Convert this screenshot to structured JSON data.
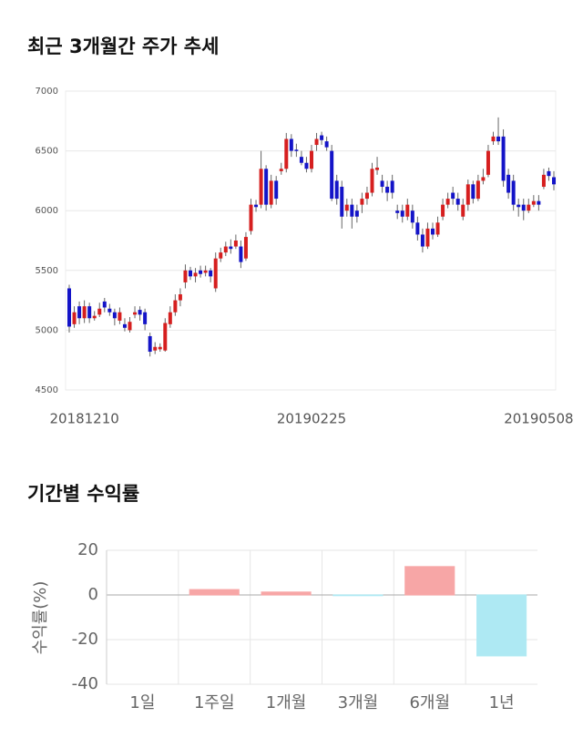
{
  "chart_data": [
    {
      "type": "candlestick",
      "title": "최근 3개월간 주가 추세",
      "categories": [
        null,
        null,
        null,
        "20181210",
        null,
        null,
        null,
        null,
        null,
        null,
        null,
        null,
        null,
        null,
        null,
        null,
        null,
        null,
        null,
        null,
        null,
        null,
        null,
        null,
        null,
        null,
        null,
        null,
        null,
        null,
        null,
        null,
        null,
        null,
        null,
        null,
        null,
        null,
        null,
        null,
        null,
        null,
        null,
        null,
        null,
        null,
        null,
        null,
        "20190225",
        null,
        null,
        null,
        null,
        null,
        null,
        null,
        null,
        null,
        null,
        null,
        null,
        null,
        null,
        null,
        null,
        null,
        null,
        null,
        null,
        null,
        null,
        null,
        null,
        null,
        null,
        null,
        null,
        null,
        null,
        null,
        null,
        null,
        null,
        null,
        null,
        null,
        null,
        null,
        null,
        null,
        null,
        null,
        null,
        "20190508",
        null,
        null,
        null
      ],
      "open": [
        5350,
        5050,
        5200,
        5100,
        5200,
        5100,
        5130,
        5240,
        5180,
        5150,
        5080,
        5050,
        5000,
        5130,
        5170,
        5150,
        4950,
        4830,
        4840,
        4830,
        5050,
        5150,
        5250,
        5400,
        5500,
        5450,
        5500,
        5480,
        5500,
        5350,
        5600,
        5650,
        5700,
        5700,
        5700,
        5600,
        5830,
        6050,
        6050,
        6350,
        6050,
        6250,
        6330,
        6350,
        6600,
        6510,
        6450,
        6400,
        6350,
        6550,
        6630,
        6580,
        6500,
        6250,
        6200,
        6000,
        6050,
        6000,
        6050,
        6100,
        6150,
        6340,
        6250,
        6200,
        6250,
        6000,
        6000,
        5950,
        6000,
        5900,
        5800,
        5700,
        5850,
        5800,
        5950,
        6050,
        6150,
        6100,
        5950,
        6050,
        6220,
        6100,
        6250,
        6300,
        6580,
        6620,
        6620,
        6300,
        6250,
        6050,
        6050,
        6000,
        6050,
        6080,
        6200,
        6330,
        6280
      ],
      "high": [
        5380,
        5200,
        5240,
        5250,
        5230,
        5160,
        5230,
        5270,
        5220,
        5180,
        5190,
        5100,
        5110,
        5200,
        5200,
        5180,
        4980,
        4900,
        4890,
        5100,
        5200,
        5300,
        5350,
        5550,
        5530,
        5520,
        5540,
        5540,
        5520,
        5650,
        5690,
        5740,
        5760,
        5800,
        5750,
        5820,
        6100,
        6090,
        6500,
        6380,
        6300,
        6290,
        6400,
        6650,
        6640,
        6560,
        6500,
        6450,
        6550,
        6650,
        6660,
        6620,
        6550,
        6300,
        6250,
        6100,
        6100,
        6050,
        6150,
        6200,
        6400,
        6450,
        6300,
        6250,
        6300,
        6050,
        6050,
        6100,
        6050,
        5950,
        5850,
        5900,
        5900,
        5950,
        6100,
        6150,
        6200,
        6150,
        6100,
        6260,
        6250,
        6300,
        6350,
        6550,
        6660,
        6780,
        6680,
        6350,
        6300,
        6100,
        6100,
        6100,
        6130,
        6130,
        6350,
        6360,
        6330
      ],
      "low": [
        4980,
        5020,
        5050,
        5060,
        5060,
        5080,
        5110,
        5150,
        5120,
        5040,
        5050,
        4990,
        4980,
        5100,
        5080,
        5000,
        4780,
        4800,
        4820,
        4820,
        5020,
        5120,
        5200,
        5350,
        5420,
        5400,
        5440,
        5450,
        5400,
        5320,
        5570,
        5620,
        5640,
        5680,
        5520,
        5580,
        5800,
        5990,
        6020,
        6000,
        6020,
        6050,
        6300,
        6320,
        6450,
        6450,
        6380,
        6320,
        6320,
        6500,
        6550,
        6500,
        6080,
        6050,
        5850,
        5950,
        5850,
        5900,
        5980,
        6050,
        6120,
        6300,
        6150,
        6080,
        6100,
        5930,
        5900,
        5920,
        5850,
        5750,
        5650,
        5680,
        5760,
        5780,
        5920,
        6020,
        6050,
        6000,
        5920,
        6000,
        6060,
        6080,
        6220,
        6280,
        6550,
        6550,
        6200,
        6100,
        6000,
        5950,
        5920,
        5980,
        6030,
        6000,
        6180,
        6250,
        6170
      ],
      "close": [
        5030,
        5150,
        5100,
        5200,
        5100,
        5120,
        5180,
        5190,
        5150,
        5100,
        5150,
        5020,
        5070,
        5150,
        5130,
        5050,
        4820,
        4860,
        4860,
        5060,
        5150,
        5250,
        5300,
        5500,
        5450,
        5480,
        5470,
        5500,
        5450,
        5600,
        5650,
        5700,
        5680,
        5750,
        5570,
        5780,
        6050,
        6030,
        6350,
        6050,
        6250,
        6100,
        6350,
        6600,
        6500,
        6500,
        6400,
        6350,
        6500,
        6600,
        6590,
        6530,
        6100,
        6100,
        5950,
        6050,
        5950,
        5950,
        6100,
        6150,
        6350,
        6360,
        6200,
        6150,
        6150,
        5980,
        5950,
        6050,
        5900,
        5800,
        5700,
        5850,
        5800,
        5900,
        6050,
        6100,
        6100,
        6050,
        6050,
        6220,
        6100,
        6250,
        6280,
        6500,
        6620,
        6580,
        6250,
        6150,
        6050,
        6030,
        6000,
        6050,
        6080,
        6050,
        6300,
        6290,
        6220
      ],
      "up_color": "#d61f1f",
      "down_color": "#1414c8",
      "ylim": [
        4500,
        7000
      ],
      "yticks": [
        4500,
        5000,
        5500,
        6000,
        6500,
        7000
      ],
      "grid": true
    },
    {
      "type": "bar",
      "title": "기간별 수익률",
      "y_label": "수익률(%)",
      "categories": [
        "1일",
        "1주일",
        "1개월",
        "3개월",
        "6개월",
        "1년"
      ],
      "values": [
        0,
        2.4,
        1.3,
        -0.3,
        12.7,
        -27.3
      ],
      "colors": [
        "#f7a6a6",
        "#f7a6a6",
        "#f7a6a6",
        "#aee9f3",
        "#f7a6a6",
        "#aee9f3"
      ],
      "ylim": [
        -40,
        20
      ],
      "yticks": [
        -40,
        -20,
        0,
        20
      ],
      "grid": true
    }
  ]
}
